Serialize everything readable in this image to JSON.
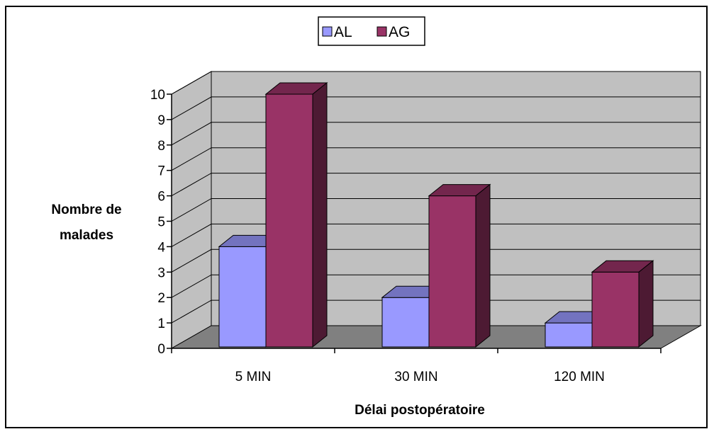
{
  "chart_data": {
    "type": "bar",
    "categories": [
      "5 MIN",
      "30 MIN",
      "120 MIN"
    ],
    "series": [
      {
        "name": "AL",
        "values": [
          4,
          2,
          1
        ],
        "color": "#9999ff"
      },
      {
        "name": "AG",
        "values": [
          10,
          6,
          3
        ],
        "color": "#993366"
      }
    ],
    "title": "",
    "xlabel": "Délai postopératoire",
    "ylabel_lines": [
      "Nombre de",
      "malades"
    ],
    "ylim": [
      0,
      10
    ],
    "yticks": [
      "0",
      "1",
      "2",
      "3",
      "4",
      "5",
      "6",
      "7",
      "8",
      "9",
      "10"
    ],
    "grid": true,
    "legend_position": "top-center",
    "style": "3d-clustered-column",
    "wall_color": "#c0c0c0",
    "floor_color": "#808080"
  }
}
